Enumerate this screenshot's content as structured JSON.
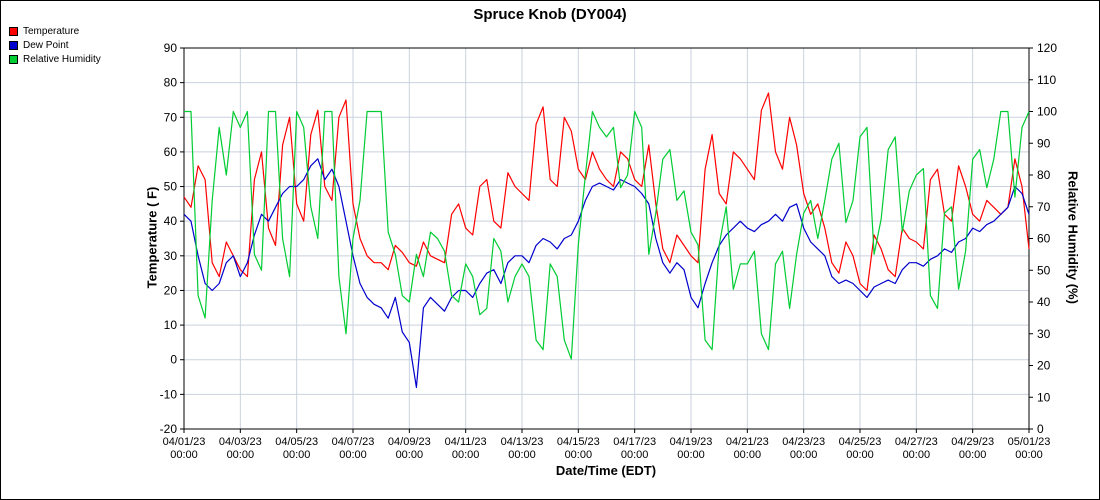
{
  "chart_data": {
    "type": "line",
    "title": "Spruce Knob (DY004)",
    "xlabel": "Date/Time (EDT)",
    "ylabel_left": "Temperature ( F)",
    "ylabel_right": "Relative Humidity (%)",
    "background": "#ffffff",
    "grid_color": "#c9d2de",
    "frame_color": "#000000",
    "left_axis": {
      "min": -20,
      "max": 90,
      "ticks": [
        90,
        80,
        70,
        60,
        50,
        40,
        30,
        20,
        10,
        0,
        -10,
        -20
      ]
    },
    "right_axis": {
      "min": 0,
      "max": 120,
      "ticks": [
        120,
        110,
        100,
        90,
        80,
        70,
        60,
        50,
        40,
        30,
        20,
        10,
        0
      ]
    },
    "x_range_days": [
      0,
      30
    ],
    "x_tick_step_days": 2,
    "x_tick_labels": [
      {
        "date": "04/01/23",
        "time": "00:00"
      },
      {
        "date": "04/03/23",
        "time": "00:00"
      },
      {
        "date": "04/05/23",
        "time": "00:00"
      },
      {
        "date": "04/07/23",
        "time": "00:00"
      },
      {
        "date": "04/09/23",
        "time": "00:00"
      },
      {
        "date": "04/11/23",
        "time": "00:00"
      },
      {
        "date": "04/13/23",
        "time": "00:00"
      },
      {
        "date": "04/15/23",
        "time": "00:00"
      },
      {
        "date": "04/17/23",
        "time": "00:00"
      },
      {
        "date": "04/19/23",
        "time": "00:00"
      },
      {
        "date": "04/21/23",
        "time": "00:00"
      },
      {
        "date": "04/23/23",
        "time": "00:00"
      },
      {
        "date": "04/25/23",
        "time": "00:00"
      },
      {
        "date": "04/27/23",
        "time": "00:00"
      },
      {
        "date": "04/29/23",
        "time": "00:00"
      },
      {
        "date": "05/01/23",
        "time": "00:00"
      }
    ],
    "legend": [
      {
        "label": "Temperature",
        "color": "#ff0000"
      },
      {
        "label": "Dew Point",
        "color": "#0000cc"
      },
      {
        "label": "Relative Humidity",
        "color": "#00cc33"
      }
    ],
    "series": [
      {
        "name": "Temperature",
        "color": "#ff0000",
        "axis": "left",
        "step_days": 0.25,
        "values": [
          47,
          44,
          56,
          52,
          28,
          24,
          34,
          30,
          26,
          24,
          52,
          60,
          38,
          33,
          62,
          70,
          45,
          40,
          65,
          72,
          50,
          46,
          70,
          75,
          45,
          35,
          30,
          28,
          28,
          26,
          33,
          31,
          28,
          27,
          34,
          30,
          29,
          28,
          42,
          45,
          38,
          36,
          50,
          52,
          40,
          38,
          54,
          50,
          48,
          46,
          68,
          73,
          52,
          50,
          70,
          66,
          55,
          52,
          60,
          55,
          52,
          50,
          60,
          58,
          52,
          50,
          62,
          45,
          32,
          28,
          36,
          33,
          30,
          28,
          55,
          65,
          48,
          45,
          60,
          58,
          55,
          52,
          72,
          77,
          60,
          55,
          70,
          62,
          48,
          42,
          45,
          38,
          28,
          25,
          34,
          30,
          22,
          20,
          36,
          32,
          26,
          24,
          38,
          35,
          34,
          32,
          52,
          55,
          42,
          40,
          56,
          50,
          42,
          40,
          46,
          44,
          42,
          44,
          58,
          50,
          32
        ]
      },
      {
        "name": "Dew Point",
        "color": "#0000cc",
        "axis": "left",
        "step_days": 0.25,
        "values": [
          42,
          40,
          30,
          22,
          20,
          22,
          28,
          30,
          24,
          28,
          36,
          42,
          40,
          44,
          48,
          50,
          50,
          52,
          56,
          58,
          52,
          55,
          50,
          40,
          30,
          22,
          18,
          16,
          15,
          12,
          18,
          8,
          5,
          -8,
          15,
          18,
          16,
          14,
          18,
          20,
          20,
          18,
          22,
          25,
          26,
          22,
          28,
          30,
          30,
          28,
          33,
          35,
          34,
          32,
          35,
          36,
          40,
          46,
          50,
          51,
          50,
          49,
          52,
          51,
          50,
          48,
          45,
          35,
          28,
          25,
          28,
          26,
          18,
          15,
          22,
          28,
          33,
          36,
          38,
          40,
          38,
          37,
          39,
          40,
          42,
          40,
          44,
          45,
          38,
          34,
          32,
          30,
          24,
          22,
          23,
          22,
          20,
          18,
          21,
          22,
          23,
          22,
          26,
          28,
          28,
          27,
          29,
          30,
          32,
          31,
          34,
          35,
          38,
          37,
          39,
          40,
          42,
          44,
          50,
          48,
          42
        ]
      },
      {
        "name": "Relative Humidity",
        "color": "#00cc33",
        "axis": "right",
        "step_days": 0.25,
        "values": [
          100,
          100,
          42,
          35,
          72,
          95,
          80,
          100,
          95,
          100,
          55,
          50,
          100,
          100,
          60,
          48,
          100,
          95,
          70,
          60,
          100,
          100,
          48,
          30,
          60,
          72,
          100,
          100,
          100,
          62,
          55,
          42,
          40,
          55,
          48,
          62,
          60,
          56,
          42,
          40,
          52,
          48,
          36,
          38,
          60,
          56,
          40,
          48,
          52,
          48,
          28,
          25,
          52,
          48,
          28,
          22,
          58,
          80,
          100,
          95,
          92,
          95,
          76,
          80,
          100,
          95,
          55,
          68,
          85,
          88,
          72,
          75,
          62,
          58,
          28,
          25,
          58,
          70,
          44,
          52,
          52,
          56,
          30,
          25,
          52,
          56,
          38,
          55,
          68,
          72,
          60,
          72,
          85,
          90,
          65,
          72,
          92,
          95,
          55,
          66,
          88,
          92,
          62,
          75,
          80,
          82,
          42,
          38,
          68,
          70,
          44,
          56,
          85,
          88,
          76,
          85,
          100,
          100,
          73,
          95,
          100
        ]
      }
    ]
  }
}
